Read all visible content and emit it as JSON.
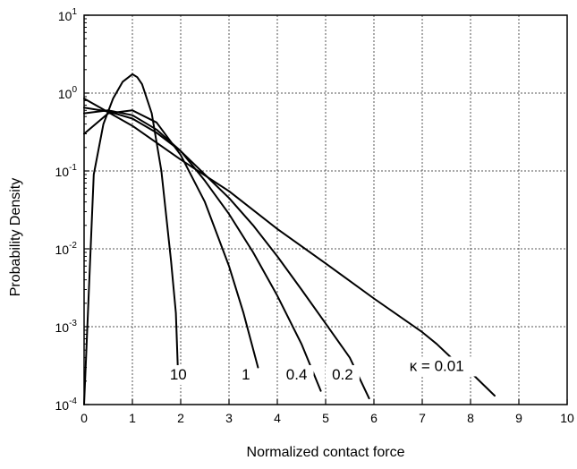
{
  "chart_data": {
    "type": "line",
    "title": "",
    "xlabel": "Normalized contact force",
    "ylabel": "Probability Density",
    "xlim": [
      0,
      10
    ],
    "ylim": [
      0.0001,
      10
    ],
    "yscale": "log",
    "grid": true,
    "x_ticks": [
      "0",
      "1",
      "2",
      "3",
      "4",
      "5",
      "6",
      "7",
      "8",
      "9",
      "10"
    ],
    "y_ticks": [
      {
        "base": "10",
        "exp": "-4",
        "value": 0.0001
      },
      {
        "base": "10",
        "exp": "-3",
        "value": 0.001
      },
      {
        "base": "10",
        "exp": "-2",
        "value": 0.01
      },
      {
        "base": "10",
        "exp": "-1",
        "value": 0.1
      },
      {
        "base": "10",
        "exp": "0",
        "value": 1
      },
      {
        "base": "10",
        "exp": "1",
        "value": 10
      }
    ],
    "series": [
      {
        "name": "10",
        "x": [
          0.0,
          0.2,
          0.4,
          0.6,
          0.8,
          1.0,
          1.1,
          1.2,
          1.4,
          1.6,
          1.8,
          1.9,
          1.95
        ],
        "y": [
          0.0001,
          0.09,
          0.4,
          0.85,
          1.4,
          1.75,
          1.6,
          1.3,
          0.55,
          0.1,
          0.007,
          0.0015,
          0.0002
        ]
      },
      {
        "name": "1",
        "x": [
          0.0,
          0.5,
          1.0,
          1.5,
          2.0,
          2.5,
          3.0,
          3.3,
          3.6
        ],
        "y": [
          0.3,
          0.55,
          0.6,
          0.42,
          0.16,
          0.04,
          0.006,
          0.0015,
          0.0003
        ]
      },
      {
        "name": "0.4",
        "x": [
          0.0,
          0.5,
          1.0,
          1.5,
          2.0,
          2.5,
          3.0,
          3.5,
          4.0,
          4.5,
          4.9
        ],
        "y": [
          0.55,
          0.6,
          0.52,
          0.34,
          0.18,
          0.075,
          0.028,
          0.009,
          0.0025,
          0.0006,
          0.00015
        ]
      },
      {
        "name": "0.2",
        "x": [
          0.0,
          0.5,
          1.0,
          1.5,
          2.0,
          2.5,
          3.0,
          3.5,
          4.0,
          4.5,
          5.0,
          5.5,
          5.9
        ],
        "y": [
          0.65,
          0.58,
          0.47,
          0.31,
          0.18,
          0.09,
          0.045,
          0.02,
          0.008,
          0.003,
          0.0011,
          0.0004,
          0.00012
        ]
      },
      {
        "name": "κ = 0.01",
        "x": [
          0.0,
          1.0,
          2.0,
          3.0,
          4.0,
          5.0,
          6.0,
          7.0,
          7.3,
          7.6,
          8.0,
          8.5
        ],
        "y": [
          0.85,
          0.38,
          0.14,
          0.055,
          0.018,
          0.0065,
          0.0023,
          0.00085,
          0.0006,
          0.0004,
          0.00026,
          0.00013
        ]
      }
    ],
    "annotations": [
      {
        "text": "10",
        "x": 1.95,
        "y": 0.00021
      },
      {
        "text": "1",
        "x": 3.35,
        "y": 0.00021
      },
      {
        "text": "0.4",
        "x": 4.4,
        "y": 0.00021
      },
      {
        "text": "0.2",
        "x": 5.35,
        "y": 0.00021
      },
      {
        "text": "κ = 0.01",
        "x": 7.3,
        "y": 0.00027
      }
    ]
  }
}
